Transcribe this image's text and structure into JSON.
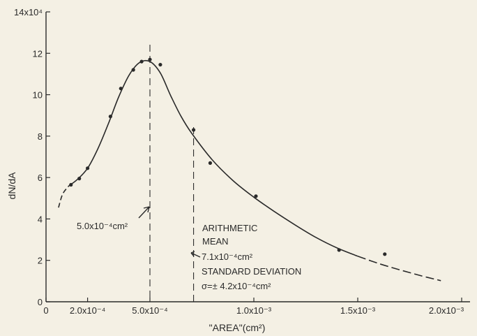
{
  "chart_data": {
    "type": "scatter",
    "title": "",
    "xlabel": "\"AREA\"(cm²)",
    "ylabel": "dN/dA",
    "xlim": [
      0,
      0.002
    ],
    "ylim": [
      0,
      14
    ],
    "grid": false,
    "colors": {
      "ink": "#2a2a2a",
      "paper": "#f4f0e4"
    },
    "x_ticks": [
      {
        "value": 0,
        "label": "0"
      },
      {
        "value": 0.0002,
        "label": "2.0x10⁻⁴"
      },
      {
        "value": 0.0005,
        "label": "5.0x10⁻⁴"
      },
      {
        "value": 0.001,
        "label": "1.0x10⁻³"
      },
      {
        "value": 0.0015,
        "label": "1.5x10⁻³"
      },
      {
        "value": 0.002,
        "label": "2.0x10⁻³"
      }
    ],
    "y_ticks": [
      {
        "value": 0,
        "label": "0"
      },
      {
        "value": 2,
        "label": "2"
      },
      {
        "value": 4,
        "label": "4"
      },
      {
        "value": 6,
        "label": "6"
      },
      {
        "value": 8,
        "label": "8"
      },
      {
        "value": 10,
        "label": "10"
      },
      {
        "value": 12,
        "label": "12"
      },
      {
        "value": 14,
        "label": "14x10⁴"
      }
    ],
    "points": [
      {
        "x": 0.00012,
        "y": 5.65
      },
      {
        "x": 0.00016,
        "y": 5.95
      },
      {
        "x": 0.0002,
        "y": 6.45
      },
      {
        "x": 0.00031,
        "y": 8.95
      },
      {
        "x": 0.00036,
        "y": 10.3
      },
      {
        "x": 0.00042,
        "y": 11.2
      },
      {
        "x": 0.00046,
        "y": 11.6
      },
      {
        "x": 0.0005,
        "y": 11.7
      },
      {
        "x": 0.00055,
        "y": 11.45
      },
      {
        "x": 0.00071,
        "y": 8.3
      },
      {
        "x": 0.00079,
        "y": 6.7
      },
      {
        "x": 0.00101,
        "y": 5.1
      },
      {
        "x": 0.00141,
        "y": 2.5
      },
      {
        "x": 0.00163,
        "y": 2.3
      }
    ],
    "fitted_curve": {
      "x": [
        6e-05,
        8e-05,
        0.00011,
        0.00015,
        0.0002,
        0.00025,
        0.0003,
        0.00035,
        0.0004,
        0.00045,
        0.0005,
        0.00055,
        0.0006,
        0.00065,
        0.0007,
        0.0008,
        0.0009,
        0.001,
        0.0011,
        0.0012,
        0.0013,
        0.0014,
        0.0015,
        0.0016,
        0.0017,
        0.0018,
        0.0019
      ],
      "y": [
        4.55,
        5.2,
        5.6,
        5.9,
        6.45,
        7.4,
        8.6,
        9.9,
        10.95,
        11.55,
        11.6,
        11.05,
        9.95,
        8.95,
        8.15,
        6.85,
        5.85,
        5.05,
        4.35,
        3.7,
        3.1,
        2.6,
        2.2,
        1.85,
        1.55,
        1.27,
        1.02
      ]
    },
    "reference_lines": [
      {
        "x": 0.0005,
        "label": "5.0x10⁻⁴cm²"
      },
      {
        "x": 0.00071,
        "label": "7.1x10⁻⁴cm²"
      }
    ],
    "annotations": {
      "mode_label": "5.0x10⁻⁴cm²",
      "mean_title_1": "ARITHMETIC",
      "mean_title_2": "MEAN",
      "mean_value": "7.1x10⁻⁴cm²",
      "sd_title": "STANDARD DEVIATION",
      "sd_value": "σ=± 4.2x10⁻⁴cm²"
    }
  }
}
